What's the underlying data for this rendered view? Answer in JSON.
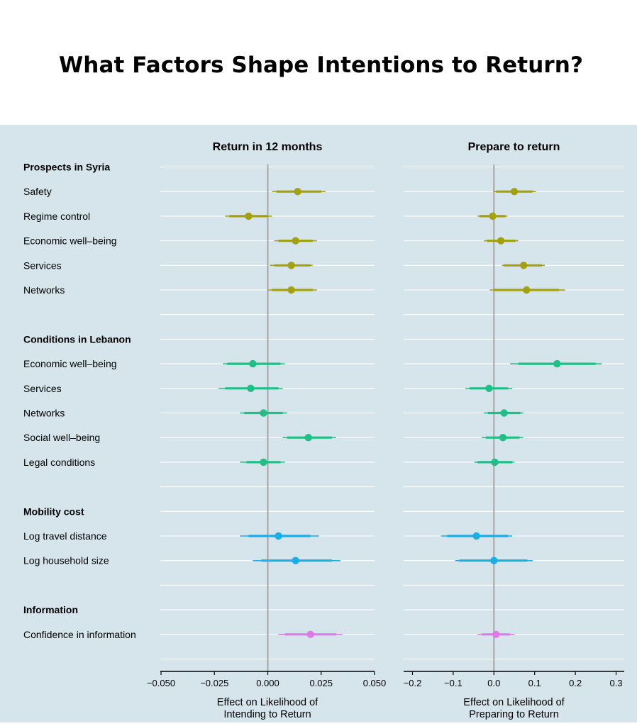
{
  "title": "What Factors Shape Intentions to Return?",
  "chart_data": [
    {
      "type": "scatter",
      "subtitle": "Return in 12 months",
      "xlabel": "Effect on Likelihood of\nIntending to Return",
      "xlim": [
        -0.05,
        0.05
      ],
      "xticks": [
        -0.05,
        -0.025,
        0.0,
        0.025,
        0.05
      ],
      "xtick_labels": [
        "−0.050",
        "−0.025",
        "0.000",
        "0.025",
        "0.050"
      ],
      "reference_line": 0,
      "estimates": [
        {
          "group": "Prospects in Syria",
          "label": "Safety",
          "estimate": 0.014,
          "ci90": [
            0.004,
            0.025
          ],
          "ci95": [
            0.002,
            0.027
          ]
        },
        {
          "group": "Prospects in Syria",
          "label": "Regime control",
          "estimate": -0.009,
          "ci90": [
            -0.018,
            0.0
          ],
          "ci95": [
            -0.02,
            0.002
          ]
        },
        {
          "group": "Prospects in Syria",
          "label": "Economic well–being",
          "estimate": 0.013,
          "ci90": [
            0.005,
            0.021
          ],
          "ci95": [
            0.003,
            0.023
          ]
        },
        {
          "group": "Prospects in Syria",
          "label": "Services",
          "estimate": 0.011,
          "ci90": [
            0.003,
            0.02
          ],
          "ci95": [
            0.001,
            0.021
          ]
        },
        {
          "group": "Prospects in Syria",
          "label": "Networks",
          "estimate": 0.011,
          "ci90": [
            0.002,
            0.021
          ],
          "ci95": [
            0.0,
            0.023
          ]
        },
        {
          "group": "Conditions in Lebanon",
          "label": "Economic well–being",
          "estimate": -0.007,
          "ci90": [
            -0.019,
            0.006
          ],
          "ci95": [
            -0.021,
            0.008
          ]
        },
        {
          "group": "Conditions in Lebanon",
          "label": "Services",
          "estimate": -0.008,
          "ci90": [
            -0.02,
            0.005
          ],
          "ci95": [
            -0.023,
            0.007
          ]
        },
        {
          "group": "Conditions in Lebanon",
          "label": "Networks",
          "estimate": -0.002,
          "ci90": [
            -0.011,
            0.007
          ],
          "ci95": [
            -0.013,
            0.009
          ]
        },
        {
          "group": "Conditions in Lebanon",
          "label": "Social well–being",
          "estimate": 0.019,
          "ci90": [
            0.009,
            0.03
          ],
          "ci95": [
            0.007,
            0.032
          ]
        },
        {
          "group": "Conditions in Lebanon",
          "label": "Legal conditions",
          "estimate": -0.002,
          "ci90": [
            -0.01,
            0.006
          ],
          "ci95": [
            -0.013,
            0.008
          ]
        },
        {
          "group": "Mobility cost",
          "label": "Log travel distance",
          "estimate": 0.005,
          "ci90": [
            -0.009,
            0.02
          ],
          "ci95": [
            -0.013,
            0.024
          ]
        },
        {
          "group": "Mobility cost",
          "label": "Log household size",
          "estimate": 0.013,
          "ci90": [
            -0.003,
            0.03
          ],
          "ci95": [
            -0.007,
            0.034
          ]
        },
        {
          "group": "Information",
          "label": "Confidence in information",
          "estimate": 0.02,
          "ci90": [
            0.008,
            0.032
          ],
          "ci95": [
            0.005,
            0.035
          ]
        }
      ]
    },
    {
      "type": "scatter",
      "subtitle": "Prepare to return",
      "xlabel": "Effect on Likelihood of\nPreparing to Return",
      "xlim": [
        -0.22,
        0.32
      ],
      "xticks": [
        -0.2,
        -0.1,
        0.0,
        0.1,
        0.2,
        0.3
      ],
      "xtick_labels": [
        "−0.2",
        "−0.1",
        "0.0",
        "0.1",
        "0.2",
        "0.3"
      ],
      "reference_line": 0,
      "estimates": [
        {
          "group": "Prospects in Syria",
          "label": "Safety",
          "estimate": 0.05,
          "ci90": [
            0.005,
            0.095
          ],
          "ci95": [
            -0.002,
            0.103
          ]
        },
        {
          "group": "Prospects in Syria",
          "label": "Regime control",
          "estimate": -0.003,
          "ci90": [
            -0.035,
            0.028
          ],
          "ci95": [
            -0.04,
            0.033
          ]
        },
        {
          "group": "Prospects in Syria",
          "label": "Economic well–being",
          "estimate": 0.017,
          "ci90": [
            -0.018,
            0.053
          ],
          "ci95": [
            -0.025,
            0.06
          ]
        },
        {
          "group": "Prospects in Syria",
          "label": "Services",
          "estimate": 0.073,
          "ci90": [
            0.025,
            0.118
          ],
          "ci95": [
            0.02,
            0.125
          ]
        },
        {
          "group": "Prospects in Syria",
          "label": "Networks",
          "estimate": 0.08,
          "ci90": [
            0.0,
            0.16
          ],
          "ci95": [
            -0.01,
            0.175
          ]
        },
        {
          "group": "Conditions in Lebanon",
          "label": "Economic well–being",
          "estimate": 0.155,
          "ci90": [
            0.06,
            0.25
          ],
          "ci95": [
            0.04,
            0.265
          ]
        },
        {
          "group": "Conditions in Lebanon",
          "label": "Services",
          "estimate": -0.012,
          "ci90": [
            -0.06,
            0.035
          ],
          "ci95": [
            -0.07,
            0.045
          ]
        },
        {
          "group": "Conditions in Lebanon",
          "label": "Networks",
          "estimate": 0.025,
          "ci90": [
            -0.015,
            0.065
          ],
          "ci95": [
            -0.025,
            0.072
          ]
        },
        {
          "group": "Conditions in Lebanon",
          "label": "Social well–being",
          "estimate": 0.022,
          "ci90": [
            -0.02,
            0.063
          ],
          "ci95": [
            -0.03,
            0.072
          ]
        },
        {
          "group": "Conditions in Lebanon",
          "label": "Legal conditions",
          "estimate": 0.002,
          "ci90": [
            -0.04,
            0.045
          ],
          "ci95": [
            -0.048,
            0.05
          ]
        },
        {
          "group": "Mobility cost",
          "label": "Log travel distance",
          "estimate": -0.043,
          "ci90": [
            -0.115,
            0.035
          ],
          "ci95": [
            -0.13,
            0.045
          ]
        },
        {
          "group": "Mobility cost",
          "label": "Log household size",
          "estimate": 0.0,
          "ci90": [
            -0.085,
            0.082
          ],
          "ci95": [
            -0.095,
            0.095
          ]
        },
        {
          "group": "Information",
          "label": "Confidence in information",
          "estimate": 0.005,
          "ci90": [
            -0.03,
            0.04
          ],
          "ci95": [
            -0.04,
            0.05
          ]
        }
      ]
    }
  ],
  "row_labels": [
    {
      "text": "Prospects in Syria",
      "heading": true
    },
    {
      "text": "Safety",
      "heading": false
    },
    {
      "text": "Regime control",
      "heading": false
    },
    {
      "text": "Economic well–being",
      "heading": false
    },
    {
      "text": "Services",
      "heading": false
    },
    {
      "text": "Networks",
      "heading": false
    },
    {
      "text": "",
      "heading": false
    },
    {
      "text": "Conditions in Lebanon",
      "heading": true
    },
    {
      "text": "Economic well–being",
      "heading": false
    },
    {
      "text": "Services",
      "heading": false
    },
    {
      "text": "Networks",
      "heading": false
    },
    {
      "text": "Social well–being",
      "heading": false
    },
    {
      "text": "Legal conditions",
      "heading": false
    },
    {
      "text": "",
      "heading": false
    },
    {
      "text": "Mobility cost",
      "heading": true
    },
    {
      "text": "Log travel distance",
      "heading": false
    },
    {
      "text": "Log household size",
      "heading": false
    },
    {
      "text": "",
      "heading": false
    },
    {
      "text": "Information",
      "heading": true
    },
    {
      "text": "Confidence in information",
      "heading": false
    },
    {
      "text": "",
      "heading": false
    }
  ],
  "colors": {
    "panel_background": "#d6e4ec",
    "gridline": "#ffffff",
    "reference_line": "#a6a6a6",
    "Prospects in Syria": "#a3a10f",
    "Conditions in Lebanon": "#1fbf86",
    "Mobility cost": "#19aee6",
    "Information": "#e07ae8"
  }
}
